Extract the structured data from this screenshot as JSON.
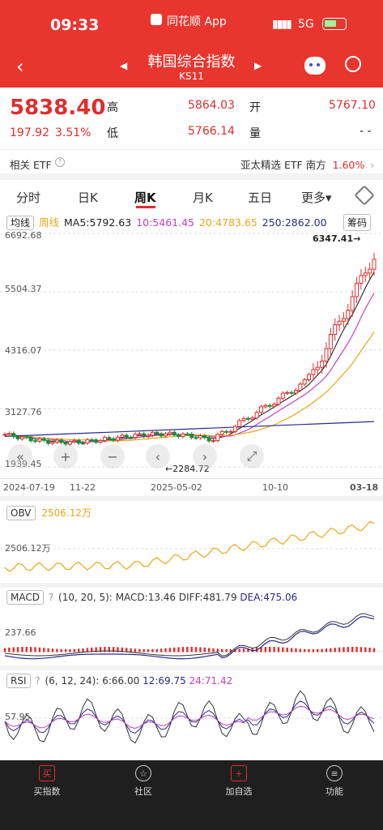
{
  "status": {
    "time": "09:33",
    "app": "同花顺 App",
    "network": "5G"
  },
  "header": {
    "title": "韩国综合指数",
    "code": "KS11"
  },
  "quote": {
    "price": "5838.40",
    "change": "197.92",
    "change_pct": "3.51%",
    "high_label": "高",
    "high": "5864.03",
    "open_label": "开",
    "open": "5767.10",
    "low_label": "低",
    "low": "5766.14",
    "volume_label": "量",
    "volume": "- -"
  },
  "etf": {
    "label": "相关 ETF",
    "name": "亚太精选 ETF 南方",
    "pct": "1.60%"
  },
  "tabs": [
    "分时",
    "日K",
    "周K",
    "月K",
    "五日",
    "更多▾"
  ],
  "active_tab": "周K",
  "legend": {
    "a": "均线",
    "b": "周线",
    "ma5": "MA5:5792.63",
    "ma10": "10:5461.45",
    "ma20": "20:4783.65",
    "ma250": "250:2862.00",
    "chip": "筹码"
  },
  "kline": {
    "y_labels": [
      "6692.68",
      "5504.37",
      "4316.07",
      "3127.76",
      "1939.45"
    ],
    "peak_label": "6347.41→",
    "trough_label": "←2284.72",
    "x_labels": [
      "2024-07-19",
      "11-22",
      "2025-05-02",
      "10-10",
      "03-18"
    ]
  },
  "obv": {
    "name": "OBV",
    "value": "2506.12万",
    "axis": "2506.12万"
  },
  "macd": {
    "name": "MACD",
    "params": "(10, 20, 5):",
    "macd": "MACD:13.46",
    "diff": "DIFF:481.79",
    "dea": "DEA:475.06",
    "axis": "237.66"
  },
  "rsi": {
    "name": "RSI",
    "params": "(6, 12, 24):",
    "r6": "6:66.00",
    "r12": "12:69.75",
    "r24": "24:71.42",
    "axis": "57.95"
  },
  "nav": [
    "买指数",
    "社区",
    "加自选",
    "功能"
  ],
  "colors": {
    "up": "#e02d2d",
    "down": "#1a8a3a",
    "ma5": "#333333",
    "ma10": "#c040c0",
    "ma20": "#e8a817",
    "ma250": "#2a2a8a"
  }
}
